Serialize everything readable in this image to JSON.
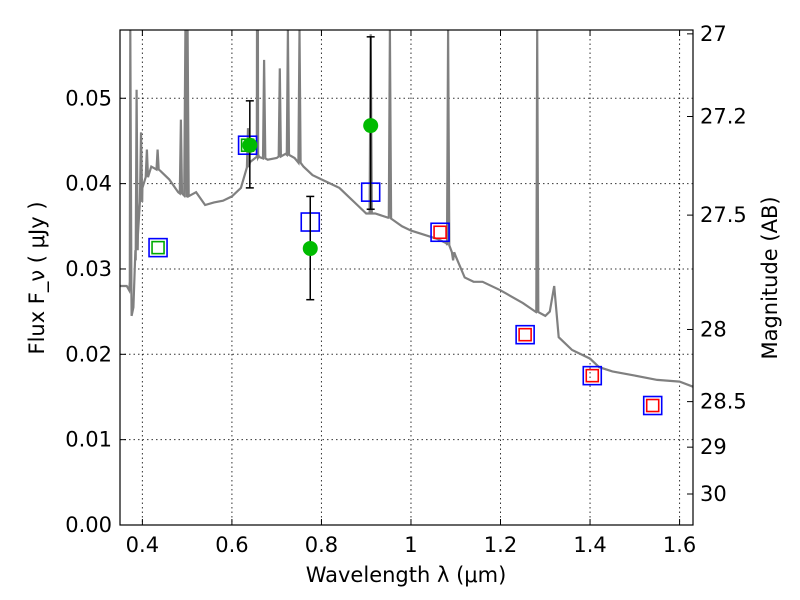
{
  "chart_data": {
    "type": "scatter",
    "title": "",
    "xlabel": "Wavelength  λ (μm)",
    "ylabel": "Flux  F_ν  ( μJy )",
    "ylabel_right": "Magnitude (AB)",
    "xlim": [
      0.35,
      1.63
    ],
    "ylim": [
      0.0,
      0.058
    ],
    "grid": true,
    "legend": "none",
    "x_ticks": [
      0.4,
      0.6,
      0.8,
      1.0,
      1.2,
      1.4,
      1.6
    ],
    "x_tick_labels": [
      "0.4",
      "0.6",
      "0.8",
      "1",
      "1.2",
      "1.4",
      "1.6"
    ],
    "y_ticks": [
      0.0,
      0.01,
      0.02,
      0.03,
      0.04,
      0.05
    ],
    "y_tick_labels": [
      "0.00",
      "0.01",
      "0.02",
      "0.03",
      "0.04",
      "0.05"
    ],
    "right_ticks": [
      {
        "mag": 27,
        "label": "27"
      },
      {
        "mag": 27.2,
        "label": "27.2"
      },
      {
        "mag": 27.5,
        "label": "27.5"
      },
      {
        "mag": 28,
        "label": "28"
      },
      {
        "mag": 28.5,
        "label": "28.5"
      },
      {
        "mag": 29,
        "label": "29"
      },
      {
        "mag": 30,
        "label": "30"
      }
    ],
    "model_spectrum": {
      "color": "#808080",
      "continuum": [
        [
          0.35,
          0.028
        ],
        [
          0.365,
          0.028
        ],
        [
          0.372,
          0.0285
        ],
        [
          0.376,
          0.0245
        ],
        [
          0.38,
          0.0255
        ],
        [
          0.385,
          0.031
        ],
        [
          0.39,
          0.034
        ],
        [
          0.4,
          0.0395
        ],
        [
          0.42,
          0.042
        ],
        [
          0.44,
          0.0415
        ],
        [
          0.46,
          0.0405
        ],
        [
          0.48,
          0.039
        ],
        [
          0.5,
          0.0385
        ],
        [
          0.52,
          0.039
        ],
        [
          0.54,
          0.0375
        ],
        [
          0.56,
          0.0378
        ],
        [
          0.58,
          0.038
        ],
        [
          0.6,
          0.0385
        ],
        [
          0.62,
          0.0395
        ],
        [
          0.64,
          0.0425
        ],
        [
          0.66,
          0.0432
        ],
        [
          0.68,
          0.0428
        ],
        [
          0.7,
          0.043
        ],
        [
          0.72,
          0.0435
        ],
        [
          0.74,
          0.043
        ],
        [
          0.76,
          0.042
        ],
        [
          0.78,
          0.041
        ],
        [
          0.8,
          0.0405
        ],
        [
          0.82,
          0.04
        ],
        [
          0.84,
          0.0395
        ],
        [
          0.86,
          0.0385
        ],
        [
          0.88,
          0.0375
        ],
        [
          0.9,
          0.0365
        ],
        [
          0.92,
          0.0365
        ],
        [
          0.95,
          0.036
        ],
        [
          0.98,
          0.035
        ],
        [
          1.0,
          0.0345
        ],
        [
          1.03,
          0.034
        ],
        [
          1.06,
          0.0335
        ],
        [
          1.08,
          0.033
        ],
        [
          1.1,
          0.0315
        ],
        [
          1.12,
          0.029
        ],
        [
          1.14,
          0.0285
        ],
        [
          1.16,
          0.0285
        ],
        [
          1.2,
          0.0275
        ],
        [
          1.25,
          0.026
        ],
        [
          1.28,
          0.025
        ],
        [
          1.3,
          0.0245
        ],
        [
          1.31,
          0.025
        ],
        [
          1.32,
          0.028
        ],
        [
          1.33,
          0.022
        ],
        [
          1.36,
          0.0205
        ],
        [
          1.4,
          0.0195
        ],
        [
          1.42,
          0.0185
        ],
        [
          1.45,
          0.018
        ],
        [
          1.5,
          0.0175
        ],
        [
          1.55,
          0.017
        ],
        [
          1.6,
          0.0168
        ],
        [
          1.63,
          0.0162
        ]
      ],
      "emission_lines": [
        [
          0.373,
          0.058
        ],
        [
          0.387,
          0.051
        ],
        [
          0.397,
          0.046
        ],
        [
          0.41,
          0.044
        ],
        [
          0.434,
          0.044
        ],
        [
          0.486,
          0.0475
        ],
        [
          0.496,
          0.058
        ],
        [
          0.501,
          0.058
        ],
        [
          0.636,
          0.0465
        ],
        [
          0.656,
          0.058
        ],
        [
          0.658,
          0.058
        ],
        [
          0.672,
          0.0545
        ],
        [
          0.707,
          0.0535
        ],
        [
          0.725,
          0.058
        ],
        [
          0.751,
          0.058
        ],
        [
          0.91,
          0.0575
        ],
        [
          0.953,
          0.058
        ],
        [
          1.083,
          0.058
        ],
        [
          1.094,
          0.031
        ],
        [
          1.282,
          0.058
        ]
      ]
    },
    "series": [
      {
        "marker": "square",
        "edge_color": "#0000ff",
        "points": [
          {
            "x": 0.435,
            "y": 0.0325
          },
          {
            "x": 0.635,
            "y": 0.0445
          },
          {
            "x": 0.775,
            "y": 0.0355
          },
          {
            "x": 0.91,
            "y": 0.039
          },
          {
            "x": 1.065,
            "y": 0.0343
          },
          {
            "x": 1.255,
            "y": 0.0223
          },
          {
            "x": 1.405,
            "y": 0.0175
          },
          {
            "x": 1.54,
            "y": 0.014
          }
        ]
      },
      {
        "marker": "square",
        "edge_color": "#00aa00",
        "points": [
          {
            "x": 0.435,
            "y": 0.0325
          },
          {
            "x": 0.635,
            "y": 0.0445
          }
        ]
      },
      {
        "marker": "square",
        "edge_color": "#ff0000",
        "points": [
          {
            "x": 1.065,
            "y": 0.0343
          },
          {
            "x": 1.255,
            "y": 0.0223
          },
          {
            "x": 1.405,
            "y": 0.0175
          },
          {
            "x": 1.54,
            "y": 0.014
          }
        ]
      },
      {
        "marker": "circle",
        "fill_color": "#00bb00",
        "errorbar_color": "#000000",
        "points": [
          {
            "x": 0.64,
            "y": 0.0445,
            "ylo": 0.0395,
            "yhi": 0.0497
          },
          {
            "x": 0.775,
            "y": 0.0324,
            "ylo": 0.0264,
            "yhi": 0.0385
          },
          {
            "x": 0.91,
            "y": 0.0468,
            "ylo": 0.037,
            "yhi": 0.0572
          }
        ]
      }
    ]
  }
}
